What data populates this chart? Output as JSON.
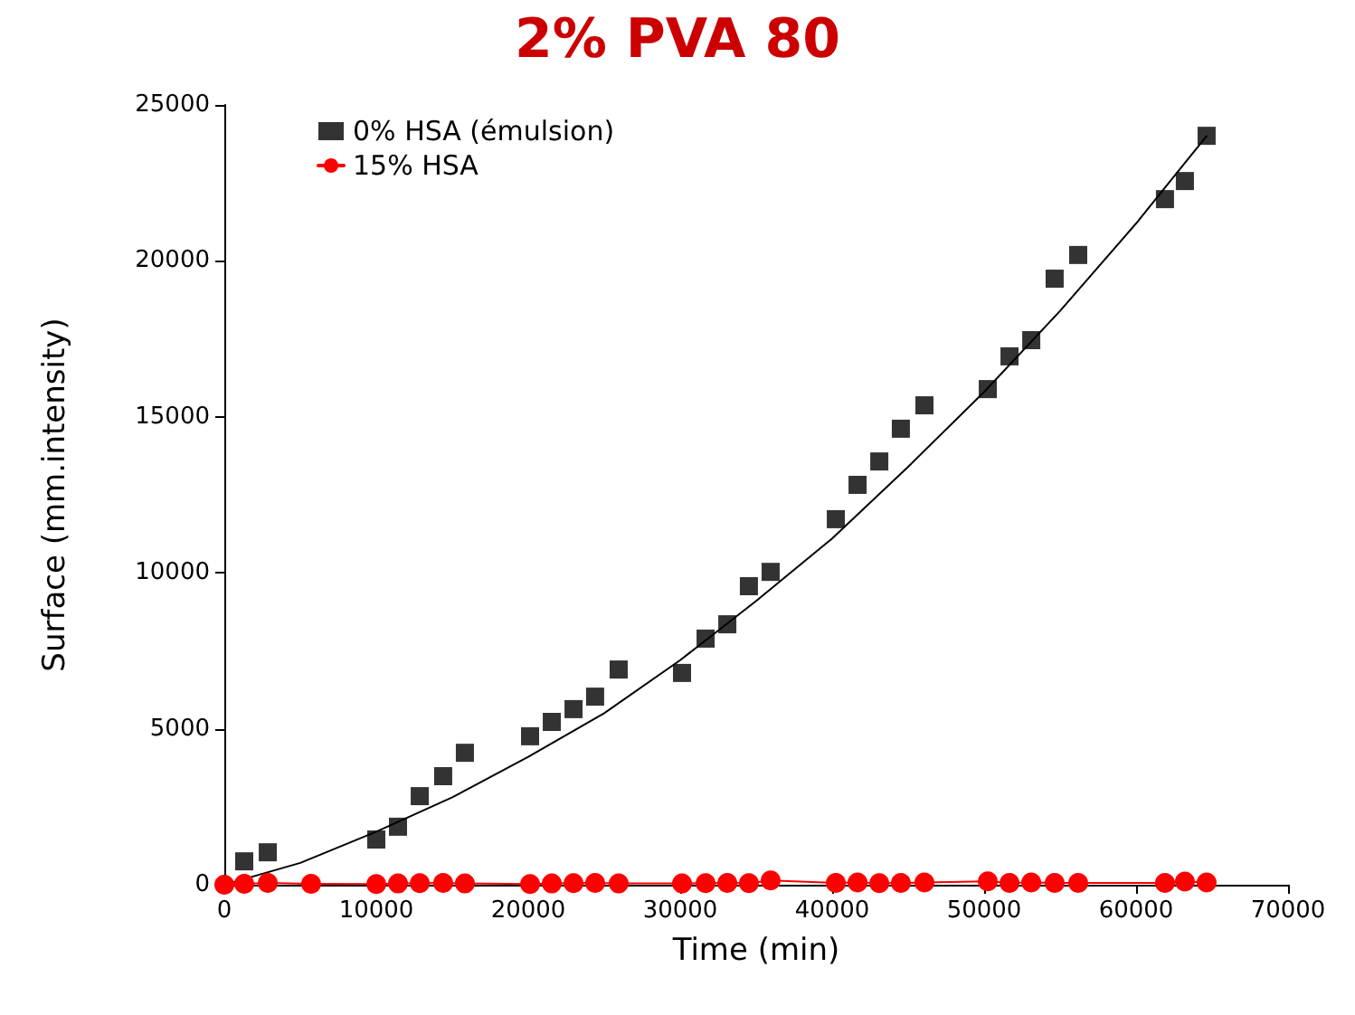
{
  "chart_data": {
    "type": "scatter",
    "title": "2% PVA 80",
    "xlabel": "Time (min)",
    "ylabel": "Surface (mm.intensity)",
    "xlim": [
      0,
      70000
    ],
    "xticks": [
      0,
      10000,
      20000,
      30000,
      40000,
      50000,
      60000,
      70000
    ],
    "ylim": [
      0,
      25000
    ],
    "yticks": [
      0,
      5000,
      10000,
      15000,
      20000,
      25000
    ],
    "grid": false,
    "legend": "top left",
    "series": [
      {
        "name": "0% HSA (émulsion)",
        "marker": "square",
        "color": "#000000",
        "x": [
          1310,
          2860,
          10000,
          11430,
          12860,
          14400,
          15830,
          20120,
          21550,
          22980,
          24400,
          25950,
          30120,
          31670,
          33100,
          34520,
          35950,
          40240,
          41670,
          43100,
          44520,
          46070,
          50240,
          51670,
          53100,
          54640,
          56190,
          61900,
          63210,
          64640
        ],
        "values": [
          750,
          1040,
          1450,
          1860,
          2840,
          3480,
          4230,
          4760,
          5220,
          5630,
          6030,
          6900,
          6790,
          7890,
          8350,
          9570,
          10030,
          11720,
          12820,
          13570,
          14620,
          15370,
          15890,
          16940,
          17460,
          19430,
          20190,
          21980,
          22560,
          24010
        ]
      },
      {
        "name": "15% HSA",
        "type": "line",
        "marker": "circle",
        "color": "#ff0000",
        "x": [
          0,
          1310,
          2860,
          5710,
          10000,
          11430,
          12860,
          14400,
          15830,
          20120,
          21550,
          22980,
          24400,
          25950,
          30120,
          31670,
          33100,
          34520,
          35950,
          40240,
          41670,
          43100,
          44520,
          46070,
          50240,
          51670,
          53100,
          54640,
          56190,
          61900,
          63210,
          64640
        ],
        "values": [
          0,
          30,
          60,
          30,
          20,
          40,
          50,
          60,
          40,
          20,
          40,
          50,
          60,
          40,
          40,
          50,
          60,
          50,
          140,
          60,
          70,
          50,
          60,
          70,
          110,
          60,
          70,
          60,
          60,
          60,
          100,
          70
        ]
      },
      {
        "type": "line",
        "marker": "none",
        "color": "#000000",
        "x": [
          0,
          5000,
          10000,
          15000,
          20000,
          25000,
          30000,
          35000,
          40000,
          45000,
          50000,
          55000,
          60000,
          64640
        ],
        "values": [
          0,
          700,
          1700,
          2800,
          4100,
          5500,
          7200,
          9100,
          11100,
          13400,
          15800,
          18400,
          21200,
          24000
        ]
      }
    ]
  }
}
